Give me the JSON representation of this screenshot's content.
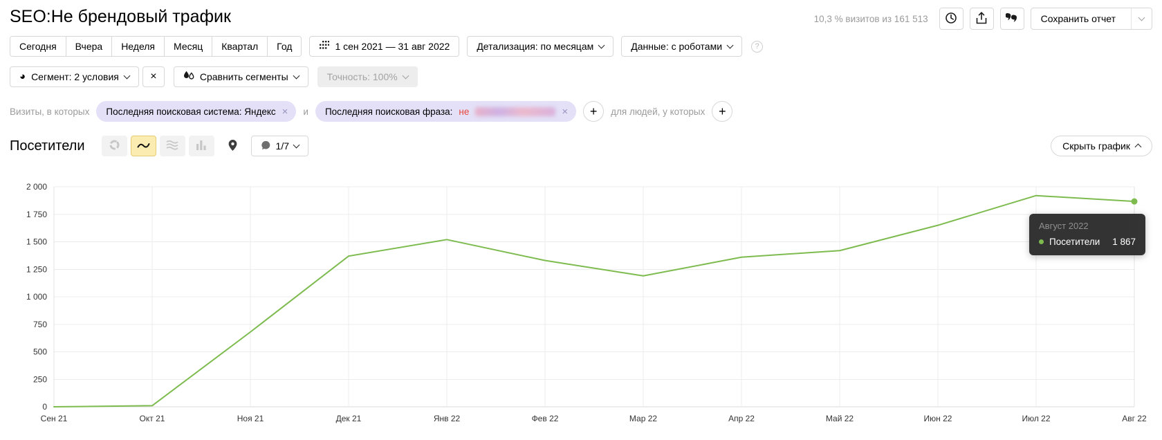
{
  "header": {
    "title": "SEO:Не брендовый трафик",
    "visits_summary": "10,3 % визитов из 161 513",
    "save_report_label": "Сохранить отчет"
  },
  "toolbar": {
    "periods": [
      "Сегодня",
      "Вчера",
      "Неделя",
      "Месяц",
      "Квартал",
      "Год"
    ],
    "date_range": "1 сен 2021 — 31 авг 2022",
    "granularity_label": "Детализация: по месяцам",
    "robots_label": "Данные: с роботами"
  },
  "segment_bar": {
    "segment_label": "Сегмент: 2 условия",
    "compare_label": "Сравнить сегменты",
    "accuracy_label": "Точность: 100%"
  },
  "filter_bar": {
    "visits_prefix": "Визиты, в которых",
    "search_engine_chip": "Последняя поисковая система: Яндекс",
    "and_label": "и",
    "phrase_chip_prefix": "Последняя поисковая фраза:",
    "phrase_operator": "не",
    "phrase_value_redacted": true,
    "people_suffix": "для людей, у которых"
  },
  "metric_bar": {
    "title": "Посетители",
    "goal_counter": "1/7",
    "hide_chart_label": "Скрыть график"
  },
  "glyphs": {
    "segment_pie": "◕",
    "close": "×",
    "plus": "+",
    "help": "?"
  },
  "icons": {
    "header": [
      "clock-icon",
      "export-icon",
      "comments-icon"
    ],
    "date_range": "calendar-dots-icon",
    "chart_types": [
      "doughnut-chart-icon",
      "line-chart-icon",
      "stacked-areas-icon",
      "bar-chart-icon"
    ],
    "map": "map-pin-icon",
    "goal": "speech-bubble-icon"
  },
  "tooltip": {
    "period": "Август 2022",
    "series_label": "Посетители",
    "value": "1 867"
  },
  "chart_data": {
    "type": "line",
    "title": "Посетители",
    "categories": [
      "Сен 21",
      "Окт 21",
      "Ноя 21",
      "Дек 21",
      "Янв 22",
      "Фев 22",
      "Мар 22",
      "Апр 22",
      "Май 22",
      "Июн 22",
      "Июл 22",
      "Авг 22"
    ],
    "values": [
      0,
      10,
      680,
      1370,
      1520,
      1330,
      1190,
      1360,
      1420,
      1650,
      1920,
      1867
    ],
    "xlabel": "",
    "ylabel": "",
    "ylim": [
      0,
      2000
    ],
    "ytick_step": 250,
    "ytick_labels": [
      "0",
      "250",
      "500",
      "750",
      "1 000",
      "1 250",
      "1 500",
      "1 750",
      "2 000"
    ],
    "grid": true,
    "legend_position": "none",
    "line_color": "#7dbb4f",
    "grid_color": "#ececec",
    "axis_color": "#d8d8d8",
    "highlight_point": {
      "category": "Авг 22",
      "value": 1867
    }
  }
}
